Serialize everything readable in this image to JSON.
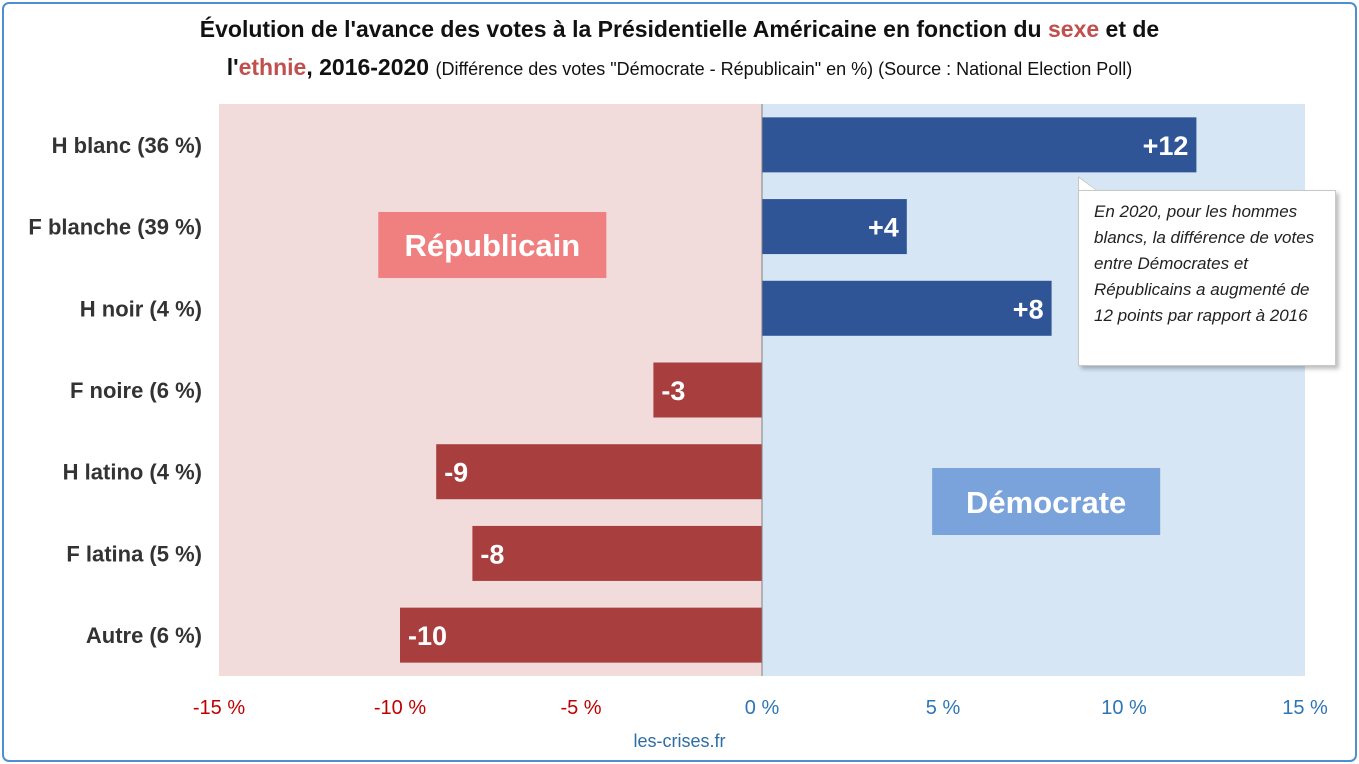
{
  "title": {
    "line1_a": "Évolution de l'avance des votes à la Présidentielle Américaine en fonction du ",
    "line1_hl": "sexe",
    "line1_b": " et de",
    "line2_a": "l'",
    "line2_hl": "ethnie",
    "line2_b": ", 2016-2020 ",
    "line2_sub": "(Différence des votes \"Démocrate - Républicain\" en %) (Source : National Election Poll)"
  },
  "source": "les-crises.fr",
  "annotation": "En 2020, pour les hommes blancs, la différence de votes entre Démocrates et Républicains a augmenté de 12 points par rapport à 2016",
  "chart_data": {
    "type": "bar",
    "orientation": "horizontal",
    "categories": [
      "H blanc (36 %)",
      "F blanche (39 %)",
      "H noir (4 %)",
      "F noire (6 %)",
      "H latino (4 %)",
      "F latina (5 %)",
      "Autre (6 %)"
    ],
    "values": [
      12,
      4,
      8,
      -3,
      -9,
      -8,
      -10
    ],
    "value_labels": [
      "+12",
      "+4",
      "+8",
      "-3",
      "-9",
      "-8",
      "-10"
    ],
    "xlim": [
      -15,
      15
    ],
    "x_ticks": [
      -15,
      -10,
      -5,
      0,
      5,
      10,
      15
    ],
    "x_tick_labels": [
      "-15 %",
      "-10 %",
      "-5 %",
      "0 %",
      "5 %",
      "10 %",
      "15 %"
    ],
    "region_labels": {
      "negative": "Républicain",
      "positive": "Démocrate"
    },
    "colors": {
      "positive_bar": "#2f5597",
      "negative_bar": "#a83e3e",
      "negative_region": "#f2dcdb",
      "positive_region": "#d6e6f4",
      "negative_tick": "#c00000",
      "positive_tick": "#2e75b6",
      "republicain_box": "#f08080",
      "democrate_box": "#7ba3db"
    },
    "grid": false
  }
}
